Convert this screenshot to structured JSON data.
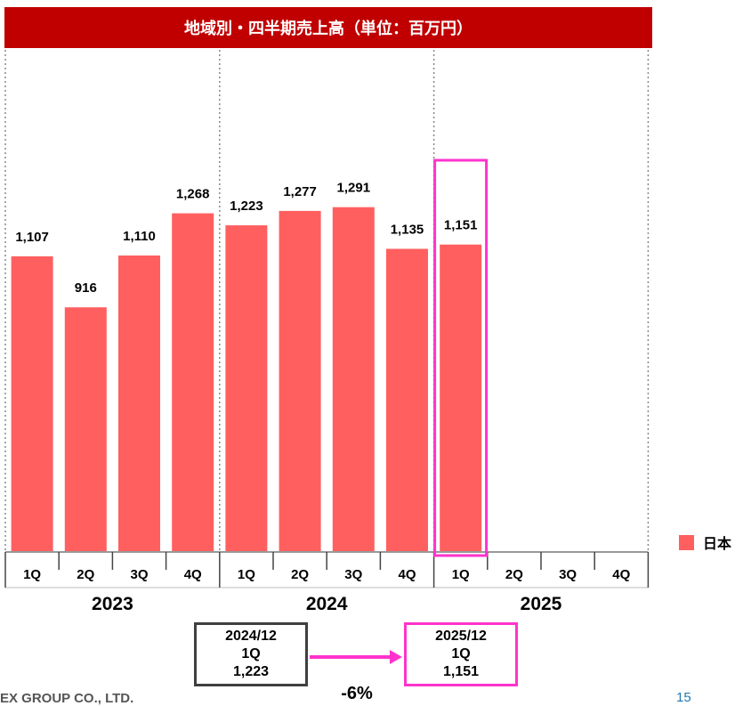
{
  "title": "地域別・四半期売上高（単位：百万円）",
  "colors": {
    "bar": "#ff5f5f",
    "title_bg": "#c00000",
    "highlight": "#ff33cc",
    "box_gray": "#404040"
  },
  "chart_data": {
    "type": "bar",
    "title": "地域別・四半期売上高（単位：百万円）",
    "ylim": [
      0,
      1500
    ],
    "grid": false,
    "legend_position": "right",
    "series": [
      {
        "name": "日本",
        "color": "#ff5f5f",
        "values": [
          1107,
          916,
          1110,
          1268,
          1223,
          1277,
          1291,
          1135,
          1151,
          null,
          null,
          null
        ],
        "labels": [
          "1,107",
          "916",
          "1,110",
          "1,268",
          "1,223",
          "1,277",
          "1,291",
          "1,135",
          "1,151",
          "",
          "",
          ""
        ]
      }
    ],
    "categories": [
      "1Q",
      "2Q",
      "3Q",
      "4Q",
      "1Q",
      "2Q",
      "3Q",
      "4Q",
      "1Q",
      "2Q",
      "3Q",
      "4Q"
    ],
    "years": [
      "2023",
      "2024",
      "2025"
    ],
    "highlight_index": 8
  },
  "legend": {
    "label": "日本"
  },
  "comparison": {
    "from": {
      "period": "2024/12",
      "quarter": "1Q",
      "value": "1,223"
    },
    "to": {
      "period": "2025/12",
      "quarter": "1Q",
      "value": "1,151"
    },
    "change": "-6%"
  },
  "footer": {
    "company": "EX GROUP CO., LTD.",
    "page": "15"
  }
}
